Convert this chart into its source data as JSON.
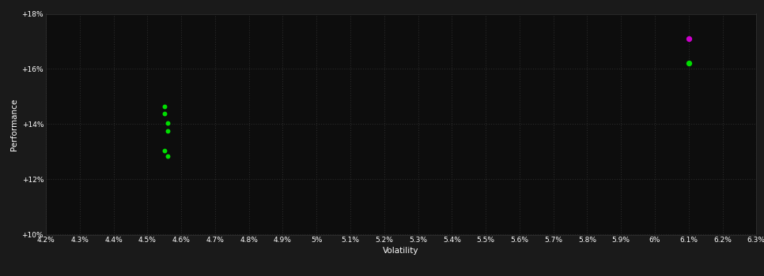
{
  "background_color": "#1a1a1a",
  "plot_bg_color": "#0d0d0d",
  "grid_color": "#2a2a2a",
  "xlabel": "Volatility",
  "ylabel": "Performance",
  "xlim": [
    0.042,
    0.063
  ],
  "ylim": [
    0.1,
    0.18
  ],
  "xticks": [
    0.042,
    0.043,
    0.044,
    0.045,
    0.046,
    0.047,
    0.048,
    0.049,
    0.05,
    0.051,
    0.052,
    0.053,
    0.054,
    0.055,
    0.056,
    0.057,
    0.058,
    0.059,
    0.06,
    0.061,
    0.062,
    0.063
  ],
  "yticks": [
    0.1,
    0.12,
    0.14,
    0.16,
    0.18
  ],
  "green_points": [
    [
      0.0455,
      0.1465
    ],
    [
      0.0455,
      0.1438
    ],
    [
      0.0456,
      0.1405
    ],
    [
      0.0456,
      0.1375
    ],
    [
      0.0455,
      0.1305
    ],
    [
      0.0456,
      0.1285
    ]
  ],
  "magenta_point": [
    0.061,
    0.171
  ],
  "green_point_large": [
    0.061,
    0.162
  ],
  "green_color": "#00dd00",
  "magenta_color": "#cc00cc",
  "dot_size_small": 18,
  "dot_size_large": 28
}
